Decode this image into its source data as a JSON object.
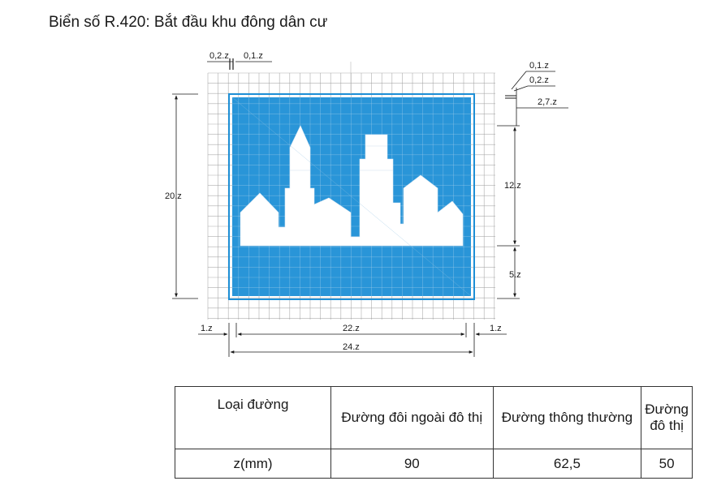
{
  "title": "Biển số R.420: Bắt đầu khu đông dân cư",
  "colors": {
    "sign_blue": "#1e8fd6",
    "grid": "#9a9a9a",
    "dim_line": "#1a1a1a",
    "sign_white": "#ffffff"
  },
  "dimensions": {
    "top_left_a": "0,2.z",
    "top_left_b": "0,1.z",
    "right_a": "0,1.z",
    "right_b": "0,2.z",
    "right_c": "2,7.z",
    "height": "20.z",
    "city_height": "12.z",
    "band_height": "5.z",
    "margin_left": "1.z",
    "inner_width": "22.z",
    "margin_right": "1.z",
    "outer_width": "24.z"
  },
  "table": {
    "headers": [
      "Loại đường",
      "Đường đôi ngoài đô thị",
      "Đường thông thường",
      "Đường đô thị"
    ],
    "row": [
      "z(mm)",
      "90",
      "62,5",
      "50"
    ]
  }
}
